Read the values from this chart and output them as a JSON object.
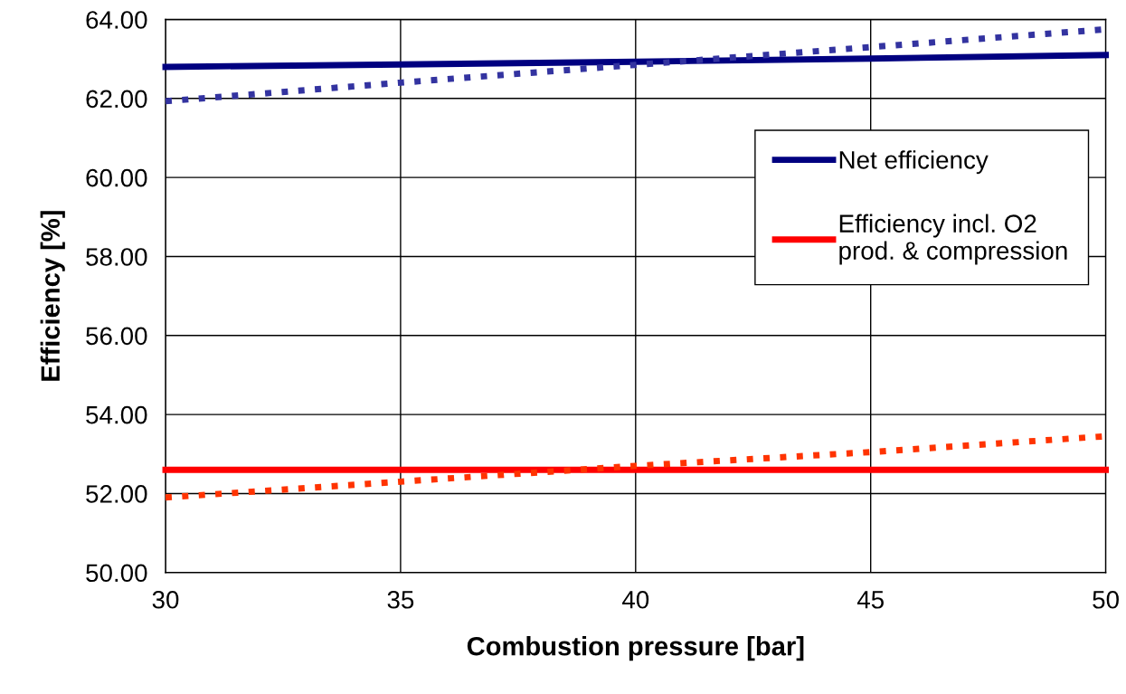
{
  "chart_data": {
    "type": "line",
    "xlabel": "Combustion pressure [bar]",
    "ylabel": "Efficiency [%]",
    "x": [
      30,
      35,
      40,
      45,
      50
    ],
    "series": [
      {
        "name": "Net efficiency",
        "color": "#000080",
        "values": [
          62.8,
          62.86,
          62.93,
          63.01,
          63.1
        ],
        "line_style": "solid"
      },
      {
        "name": "Efficiency incl. O2 prod. & compression",
        "color": "#ff0000",
        "values": [
          52.6,
          52.6,
          52.6,
          52.6,
          52.6
        ],
        "line_style": "solid"
      },
      {
        "color": "#3333a0",
        "values": [
          61.93,
          62.4,
          62.85,
          63.3,
          63.75
        ],
        "line_style": "dotted"
      },
      {
        "color": "#ff3300",
        "values": [
          51.9,
          52.3,
          52.7,
          53.05,
          53.45
        ],
        "line_style": "dotted"
      }
    ],
    "xlim": [
      30,
      50
    ],
    "xticks": [
      30,
      35,
      40,
      45,
      50
    ],
    "ylim": [
      50,
      64
    ],
    "yticks": [
      {
        "value": 50,
        "label": "50.00"
      },
      {
        "value": 52,
        "label": "52.00"
      },
      {
        "value": 54,
        "label": "54.00"
      },
      {
        "value": 56,
        "label": "56.00"
      },
      {
        "value": 58,
        "label": "58.00"
      },
      {
        "value": 60,
        "label": "60.00"
      },
      {
        "value": 62,
        "label": "62.00"
      },
      {
        "value": 64,
        "label": "64.00"
      }
    ],
    "grid": true,
    "legend": "right",
    "marker": "none"
  }
}
